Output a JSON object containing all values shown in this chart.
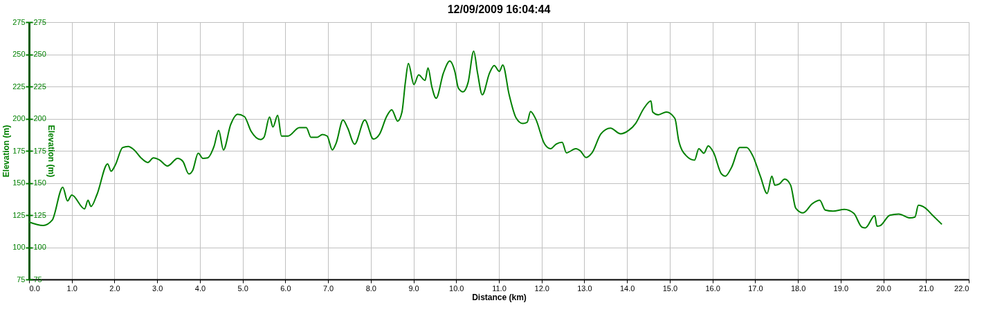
{
  "chart_data": {
    "type": "line",
    "title": "12/09/2009 16:04:44",
    "xlabel": "Distance (km)",
    "ylabel": "Elevation (m)",
    "y2label": "Elevation (m)",
    "xlim": [
      0,
      22
    ],
    "xticks": [
      {
        "value": 0,
        "label": "0.0"
      },
      {
        "value": 1,
        "label": "1.0"
      },
      {
        "value": 2,
        "label": "2.0"
      },
      {
        "value": 3,
        "label": "3.0"
      },
      {
        "value": 4,
        "label": "4.0"
      },
      {
        "value": 5,
        "label": "5.0"
      },
      {
        "value": 6,
        "label": "6.0"
      },
      {
        "value": 7,
        "label": "7.0"
      },
      {
        "value": 8,
        "label": "8.0"
      },
      {
        "value": 9,
        "label": "9.0"
      },
      {
        "value": 10,
        "label": "10.0"
      },
      {
        "value": 11,
        "label": "11.0"
      },
      {
        "value": 12,
        "label": "12.0"
      },
      {
        "value": 13,
        "label": "13.0"
      },
      {
        "value": 14,
        "label": "14.0"
      },
      {
        "value": 15,
        "label": "15.0"
      },
      {
        "value": 16,
        "label": "16.0"
      },
      {
        "value": 17,
        "label": "17.0"
      },
      {
        "value": 18,
        "label": "18.0"
      },
      {
        "value": 19,
        "label": "19.0"
      },
      {
        "value": 20,
        "label": "20.0"
      },
      {
        "value": 21,
        "label": "21.0"
      },
      {
        "value": 22,
        "label": "22.0"
      }
    ],
    "ylim": [
      75,
      275
    ],
    "yticks": [
      75,
      100,
      125,
      150,
      175,
      200,
      225,
      250,
      275
    ],
    "y2lim": [
      75,
      275
    ],
    "y2ticks": [
      75,
      100,
      125,
      150,
      175,
      200,
      225,
      250,
      275
    ],
    "grid": true,
    "series": [
      {
        "color": "#008000",
        "x": [
          0,
          0.33,
          0.54,
          0.79,
          0.9,
          1.0,
          1.3,
          1.38,
          1.45,
          1.59,
          1.84,
          1.92,
          2.02,
          2.19,
          2.32,
          2.46,
          2.62,
          2.78,
          2.91,
          3.05,
          3.24,
          3.48,
          3.6,
          3.74,
          3.83,
          3.96,
          4.07,
          4.18,
          4.33,
          4.44,
          4.55,
          4.72,
          4.88,
          5.04,
          5.2,
          5.42,
          5.5,
          5.63,
          5.71,
          5.82,
          5.91,
          6.06,
          6.33,
          6.49,
          6.6,
          6.74,
          6.87,
          6.98,
          7.1,
          7.19,
          7.35,
          7.46,
          7.62,
          7.86,
          8.06,
          8.21,
          8.37,
          8.49,
          8.63,
          8.73,
          8.81,
          8.88,
          9.01,
          9.12,
          9.27,
          9.34,
          9.43,
          9.53,
          9.7,
          9.85,
          9.97,
          10.05,
          10.16,
          10.28,
          10.41,
          10.5,
          10.61,
          10.78,
          10.89,
          11.01,
          11.09,
          11.24,
          11.4,
          11.56,
          11.66,
          11.74,
          11.86,
          12.07,
          12.21,
          12.34,
          12.48,
          12.58,
          12.8,
          12.91,
          13.04,
          13.18,
          13.39,
          13.61,
          13.85,
          14.04,
          14.2,
          14.39,
          14.56,
          14.6,
          14.73,
          14.92,
          15.12,
          15.21,
          15.38,
          15.58,
          15.68,
          15.8,
          15.9,
          16.02,
          16.21,
          16.3,
          16.45,
          16.64,
          16.8,
          16.94,
          17.12,
          17.28,
          17.39,
          17.46,
          17.56,
          17.69,
          17.83,
          17.95,
          18.12,
          18.34,
          18.51,
          18.64,
          18.82,
          19.09,
          19.31,
          19.5,
          19.58,
          19.8,
          19.85,
          19.93,
          20.15,
          20.36,
          20.63,
          20.74,
          20.82,
          20.98,
          21.14,
          21.37
        ],
        "values": [
          119.6,
          116.9,
          121,
          146.7,
          136,
          140.6,
          129.9,
          136.5,
          131.7,
          141,
          164.8,
          159.1,
          164,
          177.5,
          178.4,
          175.7,
          169.5,
          165.9,
          169.5,
          168,
          163.2,
          169.1,
          166.8,
          157,
          159.7,
          173.1,
          169.1,
          169.5,
          178.4,
          190.9,
          175.7,
          195.3,
          203.3,
          201.6,
          190,
          183.7,
          185.5,
          201.2,
          193.5,
          202.5,
          186.4,
          186.4,
          193,
          193,
          185.5,
          185.5,
          187.7,
          186.4,
          175.7,
          181,
          198.9,
          192.6,
          180.1,
          198.9,
          184.1,
          188.2,
          201.6,
          206.9,
          198,
          205.1,
          228.3,
          242.9,
          226.5,
          234,
          229.7,
          239.4,
          224.7,
          215.8,
          235.4,
          244.7,
          236.3,
          223.8,
          220.8,
          228.3,
          252.4,
          235.4,
          218.5,
          235.4,
          241.3,
          236.7,
          241.7,
          218.5,
          200.7,
          196.2,
          197.1,
          205.5,
          199.8,
          180.2,
          176.6,
          180.2,
          181.6,
          173.4,
          176.6,
          174.8,
          169.8,
          173.4,
          188.2,
          192.6,
          188.2,
          190.9,
          196.2,
          207.8,
          213.7,
          205.1,
          203,
          205.1,
          200.1,
          182.8,
          171.3,
          167.7,
          176.6,
          173.1,
          178.8,
          174,
          157,
          155.3,
          162.4,
          177.5,
          177.5,
          171.3,
          155.3,
          141.8,
          155.3,
          148.2,
          149.1,
          152.9,
          148.2,
          130.3,
          126.7,
          133.9,
          136.5,
          128.9,
          128.1,
          129.4,
          126.3,
          115.6,
          115.1,
          124.6,
          116.4,
          116.9,
          124.9,
          125.8,
          122.8,
          123.5,
          132.6,
          130.6,
          125.3,
          117.8
        ]
      }
    ]
  }
}
